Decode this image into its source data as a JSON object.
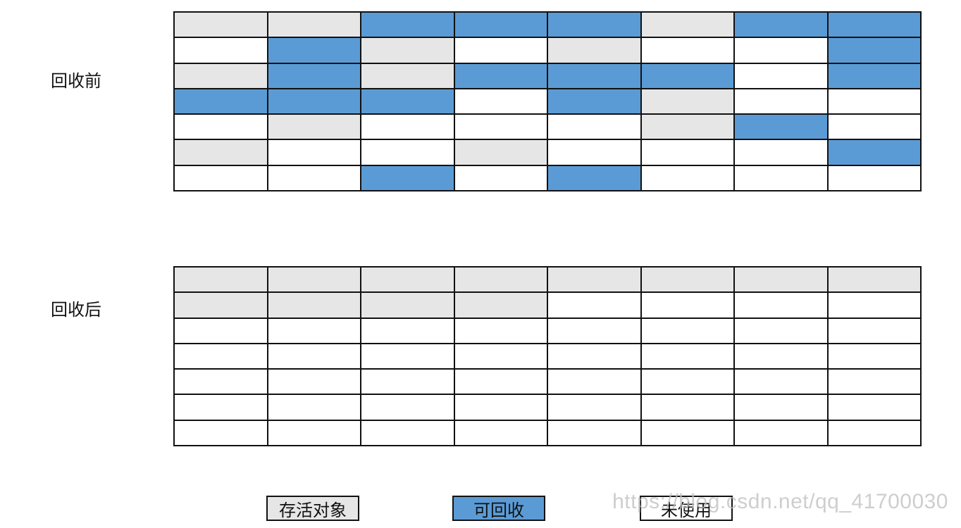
{
  "labels": {
    "before": "回收前",
    "after": "回收后"
  },
  "colors": {
    "live": "#e6e6e6",
    "recyclable": "#5b9bd5",
    "unused": "#ffffff",
    "grid_line": "#111111"
  },
  "legend": {
    "live": "存活对象",
    "recyclable": "可回收",
    "unused": "未使用"
  },
  "grids": {
    "before": {
      "columns": 8,
      "rows": [
        [
          "L",
          "L",
          "R",
          "R",
          "R",
          "L",
          "R",
          "R"
        ],
        [
          "U",
          "R",
          "L",
          "U",
          "L",
          "U",
          "U",
          "R"
        ],
        [
          "L",
          "R",
          "L",
          "R",
          "R",
          "R",
          "U",
          "R"
        ],
        [
          "R",
          "R",
          "R",
          "U",
          "R",
          "L",
          "U",
          "U"
        ],
        [
          "U",
          "L",
          "U",
          "U",
          "U",
          "L",
          "R",
          "U"
        ],
        [
          "L",
          "U",
          "U",
          "L",
          "U",
          "U",
          "U",
          "R"
        ],
        [
          "U",
          "U",
          "R",
          "U",
          "R",
          "U",
          "U",
          "U"
        ]
      ]
    },
    "after": {
      "columns": 8,
      "rows": [
        [
          "L",
          "L",
          "L",
          "L",
          "L",
          "L",
          "L",
          "L"
        ],
        [
          "L",
          "L",
          "L",
          "L",
          "U",
          "U",
          "U",
          "U"
        ],
        [
          "U",
          "U",
          "U",
          "U",
          "U",
          "U",
          "U",
          "U"
        ],
        [
          "U",
          "U",
          "U",
          "U",
          "U",
          "U",
          "U",
          "U"
        ],
        [
          "U",
          "U",
          "U",
          "U",
          "U",
          "U",
          "U",
          "U"
        ],
        [
          "U",
          "U",
          "U",
          "U",
          "U",
          "U",
          "U",
          "U"
        ],
        [
          "U",
          "U",
          "U",
          "U",
          "U",
          "U",
          "U",
          "U"
        ]
      ]
    }
  },
  "watermark": "https://blog.csdn.net/qq_41700030"
}
